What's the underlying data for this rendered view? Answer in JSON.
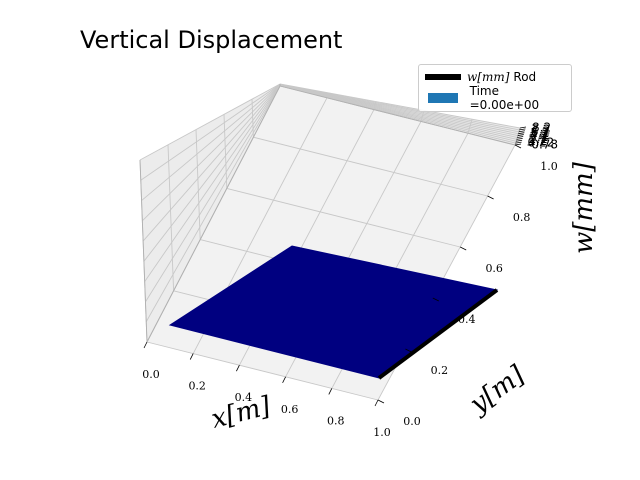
{
  "title": "Vertical Displacement",
  "legend": {
    "items": [
      {
        "math": "w[mm]",
        "text": "Rod",
        "color": "#000000",
        "kind": "line"
      },
      {
        "text": "Time =0.00e+00",
        "color": "#1f77b4",
        "kind": "patch"
      }
    ],
    "placement": "top-right"
  },
  "chart_data": {
    "type": "surface3d",
    "title": "Vertical Displacement",
    "xlabel": "x[m]",
    "ylabel": "y[m]",
    "zlabel": "w[mm]",
    "x_ticks": [
      "0.0",
      "0.2",
      "0.4",
      "0.6",
      "0.8",
      "1.0"
    ],
    "y_ticks": [
      "0.0",
      "0.2",
      "0.4",
      "0.6",
      "0.8",
      "1.0"
    ],
    "z_ticks": [
      "-0.78",
      "0.22",
      "1.2",
      "2.2",
      "3.2",
      "4.2",
      "5.2",
      "6.2",
      "7.2",
      "8.2"
    ],
    "xlim": [
      0,
      1
    ],
    "ylim": [
      0,
      1
    ],
    "zlim": [
      -0.78,
      8.2
    ],
    "grid": true,
    "surface": {
      "color": "#000080",
      "time": 0.0,
      "z": 0.0
    },
    "rod": {
      "color": "#000000",
      "x": 1.0,
      "y_range": [
        0,
        1
      ],
      "z": 0.0
    },
    "pane_color": "#f2f2f2",
    "grid_color": "#c8c8c8"
  }
}
